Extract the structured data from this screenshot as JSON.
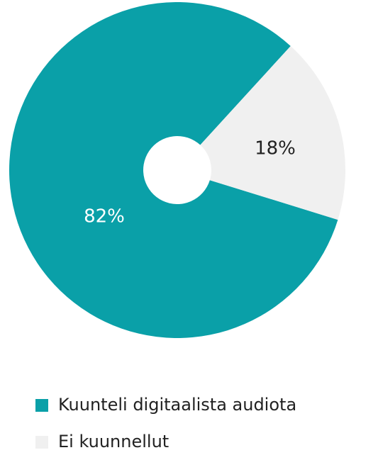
{
  "chart_data": {
    "type": "pie",
    "categories": [
      "Kuunteli digitaalista audiota",
      "Ei kuunnellut"
    ],
    "values": [
      82,
      18
    ],
    "value_labels": [
      "82%",
      "18%"
    ],
    "colors": [
      "#0aa0a8",
      "#f0f0f0"
    ],
    "donut": true,
    "legend": "bottom"
  }
}
